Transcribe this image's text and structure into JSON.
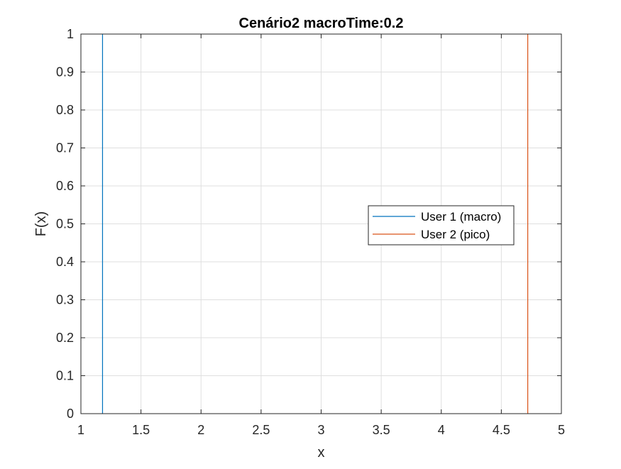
{
  "chart_data": {
    "type": "line",
    "title": "Cenário2 macroTime:0.2",
    "xlabel": "x",
    "ylabel": "F(x)",
    "xlim": [
      1,
      5
    ],
    "ylim": [
      0,
      1
    ],
    "xticks": [
      1,
      1.5,
      2,
      2.5,
      3,
      3.5,
      4,
      4.5,
      5
    ],
    "xtick_labels": [
      "1",
      "1.5",
      "2",
      "2.5",
      "3",
      "3.5",
      "4",
      "4.5",
      "5"
    ],
    "yticks": [
      0,
      0.1,
      0.2,
      0.3,
      0.4,
      0.5,
      0.6,
      0.7,
      0.8,
      0.9,
      1
    ],
    "ytick_labels": [
      "0",
      "0.1",
      "0.2",
      "0.3",
      "0.4",
      "0.5",
      "0.6",
      "0.7",
      "0.8",
      "0.9",
      "1"
    ],
    "grid": true,
    "legend_position": "center-right",
    "series": [
      {
        "name": "User 1 (macro)",
        "color": "#0072BD",
        "x": [
          1.18,
          1.18
        ],
        "y": [
          0,
          1
        ]
      },
      {
        "name": "User 2 (pico)",
        "color": "#D95319",
        "x": [
          4.72,
          4.72
        ],
        "y": [
          0,
          1
        ]
      }
    ]
  }
}
